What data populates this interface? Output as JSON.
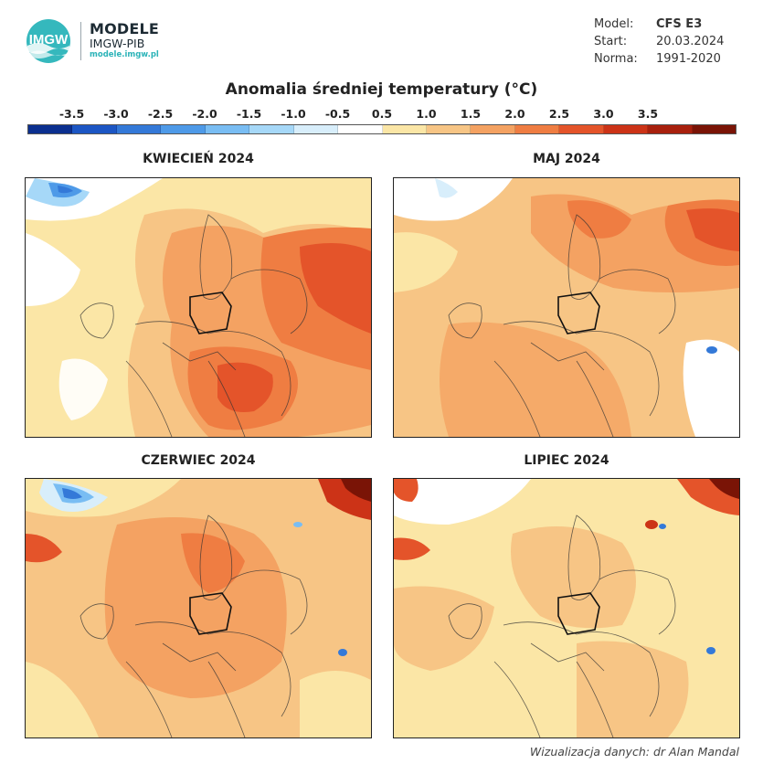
{
  "brand": {
    "logo_text": "IMGW",
    "title": "MODELE",
    "subtitle": "IMGW-PIB",
    "url": "modele.imgw.pl"
  },
  "meta": {
    "model_label": "Model:",
    "model_value": "CFS E3",
    "start_label": "Start:",
    "start_value": "20.03.2024",
    "norm_label": "Norma:",
    "norm_value": "1991-2020"
  },
  "colorbar": {
    "title": "Anomalia średniej temperatury (°C)",
    "ticks": [
      "-3.5",
      "-3.0",
      "-2.5",
      "-2.0",
      "-1.5",
      "-1.0",
      "-0.5",
      "0.5",
      "1.0",
      "1.5",
      "2.0",
      "2.5",
      "3.0",
      "3.5"
    ],
    "colors": [
      "#0b2f8f",
      "#1c56c4",
      "#3479d8",
      "#4e9ae8",
      "#79bdf3",
      "#a6d8f8",
      "#d8eefb",
      "#ffffff",
      "#fbe6a6",
      "#f7c585",
      "#f4a262",
      "#ef7d42",
      "#e4542a",
      "#cc3317",
      "#a8200d",
      "#7a1406"
    ]
  },
  "panels": [
    {
      "title": "KWIECIEŃ 2024"
    },
    {
      "title": "MAJ 2024"
    },
    {
      "title": "CZERWIEC 2024"
    },
    {
      "title": "LIPIEC 2024"
    }
  ],
  "credit": "Wizualizacja danych: dr Alan Mandal"
}
